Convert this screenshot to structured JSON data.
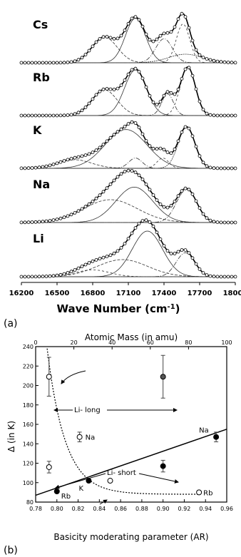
{
  "chart_data": [
    {
      "type": "line",
      "panel_label": "(a)",
      "xlabel": "Wave Number (cm",
      "xlabel_sup": "-1",
      "xlabel_close": ")",
      "xlim": [
        16200,
        18000
      ],
      "x_ticks": [
        "16200",
        "16500",
        "16800",
        "17100",
        "17400",
        "17700",
        "18000"
      ],
      "series": [
        {
          "name": "Cs",
          "components": [
            {
              "center": 16900,
              "width": 150,
              "height": 0.45
            },
            {
              "center": 17160,
              "width": 120,
              "height": 0.78
            },
            {
              "center": 17400,
              "width": 100,
              "height": 0.42
            },
            {
              "center": 17560,
              "width": 80,
              "height": 0.68
            },
            {
              "center": 17580,
              "width": 200,
              "height": 0.15
            }
          ]
        },
        {
          "name": "Rb",
          "components": [
            {
              "center": 16900,
              "width": 150,
              "height": 0.45
            },
            {
              "center": 17160,
              "width": 130,
              "height": 0.8
            },
            {
              "center": 17430,
              "width": 70,
              "height": 0.38
            },
            {
              "center": 17600,
              "width": 90,
              "height": 0.85
            }
          ]
        },
        {
          "name": "K",
          "components": [
            {
              "center": 16650,
              "width": 200,
              "height": 0.15
            },
            {
              "center": 17080,
              "width": 250,
              "height": 0.68
            },
            {
              "center": 17160,
              "width": 80,
              "height": 0.18
            },
            {
              "center": 17390,
              "width": 70,
              "height": 0.18
            },
            {
              "center": 17590,
              "width": 100,
              "height": 0.72
            }
          ]
        },
        {
          "name": "Na",
          "components": [
            {
              "center": 16950,
              "width": 320,
              "height": 0.4
            },
            {
              "center": 17150,
              "width": 220,
              "height": 0.62
            },
            {
              "center": 17590,
              "width": 120,
              "height": 0.58
            }
          ]
        },
        {
          "name": "Li",
          "components": [
            {
              "center": 17050,
              "width": 300,
              "height": 0.3
            },
            {
              "center": 17260,
              "width": 180,
              "height": 0.8
            },
            {
              "center": 17580,
              "width": 110,
              "height": 0.42
            },
            {
              "center": 16800,
              "width": 200,
              "height": 0.12
            }
          ]
        }
      ]
    },
    {
      "type": "scatter",
      "panel_label": "(b)",
      "xlabel": "Basicity moderating parameter (AR)",
      "ylabel": "Δ (in K)",
      "top_xlabel": "Atomic Mass (in amu)",
      "xlim": [
        0.78,
        0.96
      ],
      "ylim": [
        80,
        240
      ],
      "top_xlim": [
        0,
        100
      ],
      "x_ticks": [
        "0.78",
        "0.80",
        "0.82",
        "0.84",
        "0.86",
        "0.88",
        "0.90",
        "0.92",
        "0.94",
        "0.96"
      ],
      "y_ticks": [
        "80",
        "100",
        "120",
        "140",
        "160",
        "180",
        "200",
        "220",
        "240"
      ],
      "top_x_ticks": [
        "0",
        "20",
        "40",
        "60",
        "80",
        "100"
      ],
      "filled_points": [
        {
          "x": 0.8,
          "y": 91,
          "label": "Rb"
        },
        {
          "x": 0.83,
          "y": 102,
          "label": "K"
        },
        {
          "x": 0.9,
          "y": 117,
          "err": 6
        },
        {
          "x": 0.95,
          "y": 147,
          "err": 5,
          "label": "Na"
        },
        {
          "x": 0.9,
          "y": 209,
          "err": 22
        }
      ],
      "open_points": [
        {
          "mass": 7,
          "y": 209,
          "err": 20
        },
        {
          "mass": 7,
          "y": 116,
          "err": 6
        },
        {
          "mass": 23,
          "y": 147,
          "err": 5,
          "label": "Na"
        },
        {
          "mass": 39,
          "y": 102,
          "label": "K"
        },
        {
          "mass": 85.5,
          "y": 90,
          "label": "Rb"
        }
      ],
      "fit_line": {
        "x": [
          0.78,
          0.96
        ],
        "y": [
          87,
          155
        ]
      },
      "annotations": {
        "long": "Li- long",
        "short": "Li- short"
      }
    }
  ]
}
